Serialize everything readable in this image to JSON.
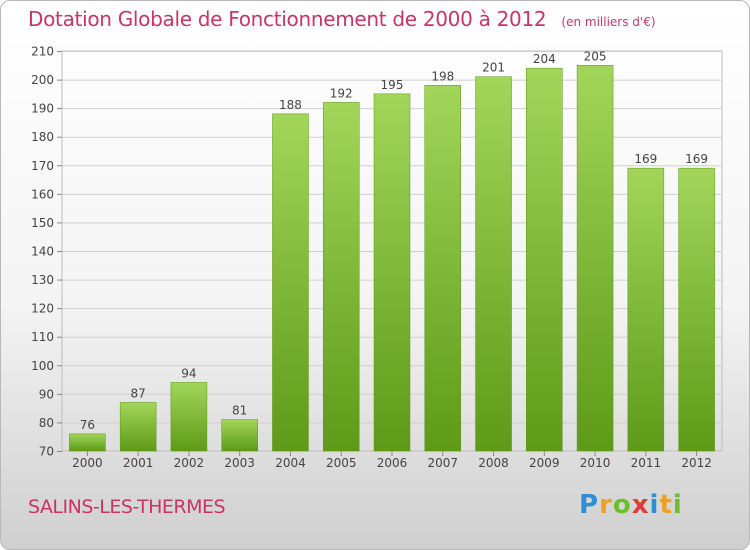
{
  "chart_data": {
    "type": "bar",
    "title": "Dotation Globale de Fonctionnement de 2000 à 2012",
    "unit": "(en milliers d'€)",
    "categories": [
      "2000",
      "2001",
      "2002",
      "2003",
      "2004",
      "2005",
      "2006",
      "2007",
      "2008",
      "2009",
      "2010",
      "2011",
      "2012"
    ],
    "values": [
      76,
      87,
      94,
      81,
      188,
      192,
      195,
      198,
      201,
      204,
      205,
      169,
      169
    ],
    "ylim": [
      70,
      210
    ],
    "yticks": [
      70,
      80,
      90,
      100,
      110,
      120,
      130,
      140,
      150,
      160,
      170,
      180,
      190,
      200,
      210
    ],
    "grid": true,
    "bar_color": "#7dba35"
  },
  "place_name": "SALINS-LES-THERMES",
  "logo": {
    "letters": [
      "P",
      "r",
      "o",
      "x",
      "i",
      "t",
      "i"
    ],
    "colors": [
      "#2f8fd6",
      "#f0a020",
      "#6cbf2a",
      "#e03a3a",
      "#2f8fd6",
      "#f0a020",
      "#6cbf2a"
    ]
  }
}
